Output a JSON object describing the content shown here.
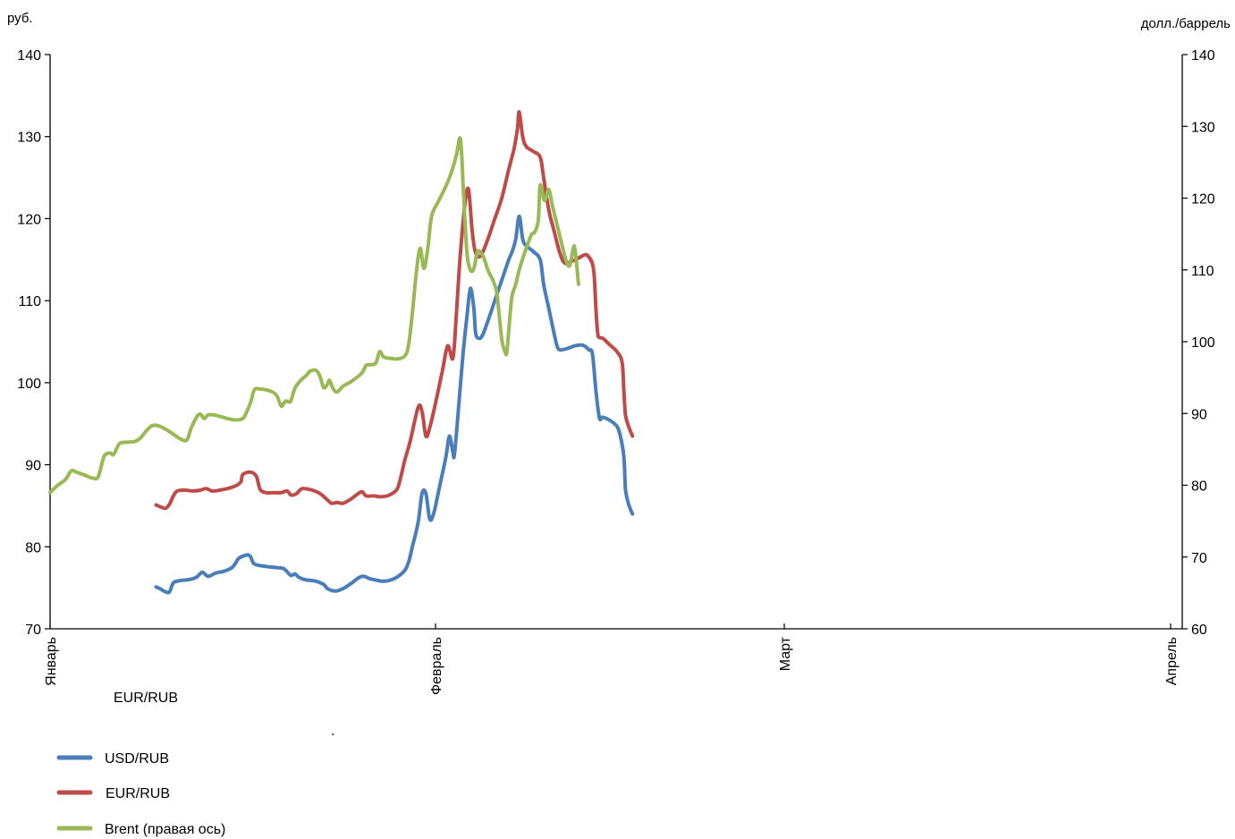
{
  "chart_data": {
    "type": "line",
    "left_axis_unit": "руб.",
    "right_axis_unit": "долл./баррель",
    "left_ylim": [
      70,
      140
    ],
    "right_ylim": [
      60,
      140
    ],
    "left_yticks": [
      70,
      80,
      90,
      100,
      110,
      120,
      130,
      140
    ],
    "right_yticks": [
      60,
      70,
      80,
      90,
      100,
      110,
      120,
      130,
      140
    ],
    "x_month_labels": [
      "Январь",
      "Февраль",
      "Март",
      "Апрель"
    ],
    "stray_label": "EUR/RUB",
    "stray_dot": ".",
    "grid": false,
    "legend_position": "bottom-left",
    "colors": {
      "usd": "#4a7ebb",
      "eur": "#be4b48",
      "brent": "#98b954"
    },
    "series": [
      {
        "name": "USD/RUB",
        "axis": "left",
        "color": "#4a7ebb",
        "points": [
          [
            0.275,
            75.1
          ],
          [
            0.285,
            74.9
          ],
          [
            0.3,
            74.5
          ],
          [
            0.31,
            74.5
          ],
          [
            0.32,
            75.6
          ],
          [
            0.34,
            75.9
          ],
          [
            0.36,
            76.0
          ],
          [
            0.38,
            76.3
          ],
          [
            0.395,
            76.9
          ],
          [
            0.41,
            76.4
          ],
          [
            0.43,
            76.8
          ],
          [
            0.45,
            77.0
          ],
          [
            0.47,
            77.4
          ],
          [
            0.48,
            77.9
          ],
          [
            0.49,
            78.6
          ],
          [
            0.51,
            79.0
          ],
          [
            0.52,
            78.8
          ],
          [
            0.53,
            77.9
          ],
          [
            0.56,
            77.6
          ],
          [
            0.6,
            77.4
          ],
          [
            0.61,
            77.2
          ],
          [
            0.625,
            76.5
          ],
          [
            0.635,
            76.7
          ],
          [
            0.645,
            76.3
          ],
          [
            0.66,
            76.0
          ],
          [
            0.69,
            75.8
          ],
          [
            0.71,
            75.4
          ],
          [
            0.72,
            74.9
          ],
          [
            0.74,
            74.6
          ],
          [
            0.76,
            74.9
          ],
          [
            0.78,
            75.5
          ],
          [
            0.8,
            76.2
          ],
          [
            0.81,
            76.4
          ],
          [
            0.82,
            76.3
          ],
          [
            0.83,
            76.1
          ],
          [
            0.85,
            75.9
          ],
          [
            0.86,
            75.8
          ],
          [
            0.88,
            75.9
          ],
          [
            0.9,
            76.3
          ],
          [
            0.92,
            77.1
          ],
          [
            0.93,
            78.1
          ],
          [
            0.94,
            80.0
          ],
          [
            0.955,
            83.0
          ],
          [
            0.965,
            86.5
          ],
          [
            0.975,
            86.5
          ],
          [
            0.985,
            83.4
          ],
          [
            0.995,
            84.0
          ],
          [
            1.01,
            87.0
          ],
          [
            1.03,
            91.0
          ],
          [
            1.04,
            93.5
          ],
          [
            1.05,
            91.5
          ],
          [
            1.055,
            91.5
          ],
          [
            1.07,
            99.0
          ],
          [
            1.08,
            104.0
          ],
          [
            1.09,
            108.0
          ],
          [
            1.1,
            111.5
          ],
          [
            1.11,
            109.0
          ],
          [
            1.115,
            106.0
          ],
          [
            1.125,
            105.4
          ],
          [
            1.135,
            105.8
          ],
          [
            1.15,
            107.5
          ],
          [
            1.17,
            110.0
          ],
          [
            1.19,
            112.5
          ],
          [
            1.21,
            115.0
          ],
          [
            1.22,
            116.0
          ],
          [
            1.23,
            117.5
          ],
          [
            1.24,
            120.3
          ],
          [
            1.25,
            117.5
          ],
          [
            1.26,
            116.7
          ],
          [
            1.28,
            116.0
          ],
          [
            1.3,
            115.0
          ],
          [
            1.31,
            112.0
          ],
          [
            1.325,
            109.0
          ],
          [
            1.34,
            106.0
          ],
          [
            1.35,
            104.3
          ],
          [
            1.36,
            104.0
          ],
          [
            1.38,
            104.2
          ],
          [
            1.4,
            104.5
          ],
          [
            1.42,
            104.6
          ],
          [
            1.43,
            104.4
          ],
          [
            1.44,
            104.0
          ],
          [
            1.45,
            103.5
          ],
          [
            1.46,
            99.0
          ],
          [
            1.47,
            95.7
          ],
          [
            1.48,
            95.8
          ],
          [
            1.5,
            95.4
          ],
          [
            1.52,
            94.7
          ],
          [
            1.53,
            93.5
          ],
          [
            1.54,
            91.0
          ],
          [
            1.545,
            86.9
          ],
          [
            1.555,
            85.0
          ],
          [
            1.565,
            84.0
          ]
        ]
      },
      {
        "name": "EUR/RUB",
        "axis": "left",
        "color": "#be4b48",
        "points": [
          [
            0.275,
            85.1
          ],
          [
            0.29,
            84.8
          ],
          [
            0.3,
            84.7
          ],
          [
            0.31,
            85.2
          ],
          [
            0.32,
            86.2
          ],
          [
            0.33,
            86.8
          ],
          [
            0.35,
            86.9
          ],
          [
            0.37,
            86.8
          ],
          [
            0.39,
            86.9
          ],
          [
            0.405,
            87.1
          ],
          [
            0.42,
            86.8
          ],
          [
            0.44,
            86.9
          ],
          [
            0.46,
            87.1
          ],
          [
            0.48,
            87.4
          ],
          [
            0.495,
            87.9
          ],
          [
            0.5,
            88.8
          ],
          [
            0.52,
            89.1
          ],
          [
            0.535,
            88.6
          ],
          [
            0.545,
            87.0
          ],
          [
            0.56,
            86.6
          ],
          [
            0.58,
            86.6
          ],
          [
            0.6,
            86.6
          ],
          [
            0.615,
            86.8
          ],
          [
            0.625,
            86.3
          ],
          [
            0.64,
            86.5
          ],
          [
            0.65,
            87.0
          ],
          [
            0.66,
            87.1
          ],
          [
            0.68,
            86.9
          ],
          [
            0.7,
            86.5
          ],
          [
            0.72,
            85.7
          ],
          [
            0.73,
            85.3
          ],
          [
            0.745,
            85.4
          ],
          [
            0.76,
            85.3
          ],
          [
            0.78,
            85.8
          ],
          [
            0.8,
            86.5
          ],
          [
            0.81,
            86.7
          ],
          [
            0.82,
            86.2
          ],
          [
            0.84,
            86.2
          ],
          [
            0.86,
            86.1
          ],
          [
            0.88,
            86.3
          ],
          [
            0.9,
            87.0
          ],
          [
            0.91,
            88.5
          ],
          [
            0.92,
            90.5
          ],
          [
            0.935,
            93.0
          ],
          [
            0.955,
            97.0
          ],
          [
            0.965,
            96.5
          ],
          [
            0.975,
            93.5
          ],
          [
            0.985,
            94.5
          ],
          [
            1.0,
            97.5
          ],
          [
            1.02,
            101.5
          ],
          [
            1.035,
            104.5
          ],
          [
            1.05,
            103.0
          ],
          [
            1.06,
            108.5
          ],
          [
            1.07,
            115.0
          ],
          [
            1.085,
            122.0
          ],
          [
            1.095,
            123.5
          ],
          [
            1.105,
            118.5
          ],
          [
            1.115,
            115.8
          ],
          [
            1.13,
            115.5
          ],
          [
            1.15,
            117.5
          ],
          [
            1.17,
            120.0
          ],
          [
            1.19,
            122.5
          ],
          [
            1.21,
            126.0
          ],
          [
            1.225,
            128.5
          ],
          [
            1.235,
            131.0
          ],
          [
            1.24,
            133.0
          ],
          [
            1.25,
            130.0
          ],
          [
            1.26,
            128.8
          ],
          [
            1.28,
            128.2
          ],
          [
            1.3,
            127.5
          ],
          [
            1.31,
            125.0
          ],
          [
            1.325,
            121.0
          ],
          [
            1.34,
            118.5
          ],
          [
            1.355,
            116.0
          ],
          [
            1.37,
            114.6
          ],
          [
            1.39,
            114.8
          ],
          [
            1.41,
            115.2
          ],
          [
            1.43,
            115.6
          ],
          [
            1.44,
            115.3
          ],
          [
            1.45,
            114.5
          ],
          [
            1.455,
            113.0
          ],
          [
            1.46,
            109.0
          ],
          [
            1.465,
            106.0
          ],
          [
            1.47,
            105.5
          ],
          [
            1.48,
            105.4
          ],
          [
            1.5,
            104.6
          ],
          [
            1.52,
            103.8
          ],
          [
            1.535,
            102.5
          ],
          [
            1.54,
            99.0
          ],
          [
            1.545,
            96.0
          ],
          [
            1.555,
            94.5
          ],
          [
            1.565,
            93.5
          ]
        ]
      },
      {
        "name": "Brent (правая ось)",
        "axis": "right",
        "color": "#98b954",
        "points": [
          [
            0.0,
            79.0
          ],
          [
            0.02,
            80.0
          ],
          [
            0.04,
            80.8
          ],
          [
            0.055,
            82.0
          ],
          [
            0.07,
            81.8
          ],
          [
            0.09,
            81.4
          ],
          [
            0.11,
            81.0
          ],
          [
            0.125,
            81.2
          ],
          [
            0.14,
            84.0
          ],
          [
            0.155,
            84.5
          ],
          [
            0.165,
            84.3
          ],
          [
            0.18,
            85.8
          ],
          [
            0.2,
            86.0
          ],
          [
            0.22,
            86.1
          ],
          [
            0.235,
            86.6
          ],
          [
            0.25,
            87.6
          ],
          [
            0.265,
            88.3
          ],
          [
            0.28,
            88.3
          ],
          [
            0.3,
            87.8
          ],
          [
            0.32,
            87.1
          ],
          [
            0.34,
            86.4
          ],
          [
            0.355,
            86.3
          ],
          [
            0.365,
            87.8
          ],
          [
            0.38,
            89.5
          ],
          [
            0.39,
            89.9
          ],
          [
            0.4,
            89.3
          ],
          [
            0.41,
            89.8
          ],
          [
            0.425,
            89.8
          ],
          [
            0.44,
            89.6
          ],
          [
            0.46,
            89.3
          ],
          [
            0.48,
            89.1
          ],
          [
            0.5,
            89.3
          ],
          [
            0.51,
            90.2
          ],
          [
            0.52,
            91.5
          ],
          [
            0.53,
            93.3
          ],
          [
            0.545,
            93.4
          ],
          [
            0.56,
            93.3
          ],
          [
            0.58,
            92.9
          ],
          [
            0.59,
            92.3
          ],
          [
            0.6,
            91.0
          ],
          [
            0.61,
            91.7
          ],
          [
            0.62,
            91.6
          ],
          [
            0.625,
            91.8
          ],
          [
            0.635,
            93.5
          ],
          [
            0.65,
            94.6
          ],
          [
            0.665,
            95.3
          ],
          [
            0.675,
            95.9
          ],
          [
            0.69,
            96.0
          ],
          [
            0.7,
            95.2
          ],
          [
            0.71,
            93.6
          ],
          [
            0.72,
            94.1
          ],
          [
            0.725,
            94.6
          ],
          [
            0.735,
            93.4
          ],
          [
            0.745,
            93.0
          ],
          [
            0.76,
            93.8
          ],
          [
            0.78,
            94.4
          ],
          [
            0.8,
            95.2
          ],
          [
            0.81,
            95.7
          ],
          [
            0.82,
            96.7
          ],
          [
            0.83,
            96.8
          ],
          [
            0.845,
            97.0
          ],
          [
            0.855,
            98.6
          ],
          [
            0.865,
            97.9
          ],
          [
            0.88,
            97.7
          ],
          [
            0.9,
            97.6
          ],
          [
            0.92,
            98.0
          ],
          [
            0.93,
            99.5
          ],
          [
            0.94,
            104.0
          ],
          [
            0.95,
            109.5
          ],
          [
            0.96,
            113.0
          ],
          [
            0.97,
            110.2
          ],
          [
            0.98,
            113.0
          ],
          [
            0.99,
            117.5
          ],
          [
            1.01,
            119.7
          ],
          [
            1.03,
            121.7
          ],
          [
            1.045,
            123.5
          ],
          [
            1.06,
            126.0
          ],
          [
            1.07,
            128.4
          ],
          [
            1.075,
            126.0
          ],
          [
            1.08,
            121.0
          ],
          [
            1.09,
            112.5
          ],
          [
            1.1,
            110.0
          ],
          [
            1.11,
            110.2
          ],
          [
            1.12,
            112.5
          ],
          [
            1.13,
            112.4
          ],
          [
            1.14,
            111.5
          ],
          [
            1.15,
            110.0
          ],
          [
            1.165,
            108.5
          ],
          [
            1.175,
            107.0
          ],
          [
            1.18,
            105.0
          ],
          [
            1.19,
            100.3
          ],
          [
            1.2,
            98.5
          ],
          [
            1.205,
            98.8
          ],
          [
            1.215,
            104.5
          ],
          [
            1.22,
            106.5
          ],
          [
            1.23,
            108.0
          ],
          [
            1.24,
            110.0
          ],
          [
            1.26,
            113.0
          ],
          [
            1.275,
            114.9
          ],
          [
            1.285,
            115.3
          ],
          [
            1.295,
            117.0
          ],
          [
            1.3,
            121.8
          ],
          [
            1.31,
            119.9
          ],
          [
            1.315,
            119.8
          ],
          [
            1.325,
            121.2
          ],
          [
            1.335,
            119.0
          ],
          [
            1.35,
            116.0
          ],
          [
            1.365,
            113.0
          ],
          [
            1.375,
            111.2
          ],
          [
            1.385,
            110.6
          ],
          [
            1.395,
            113.0
          ],
          [
            1.4,
            112.8
          ],
          [
            1.41,
            108.0
          ]
        ]
      }
    ]
  }
}
